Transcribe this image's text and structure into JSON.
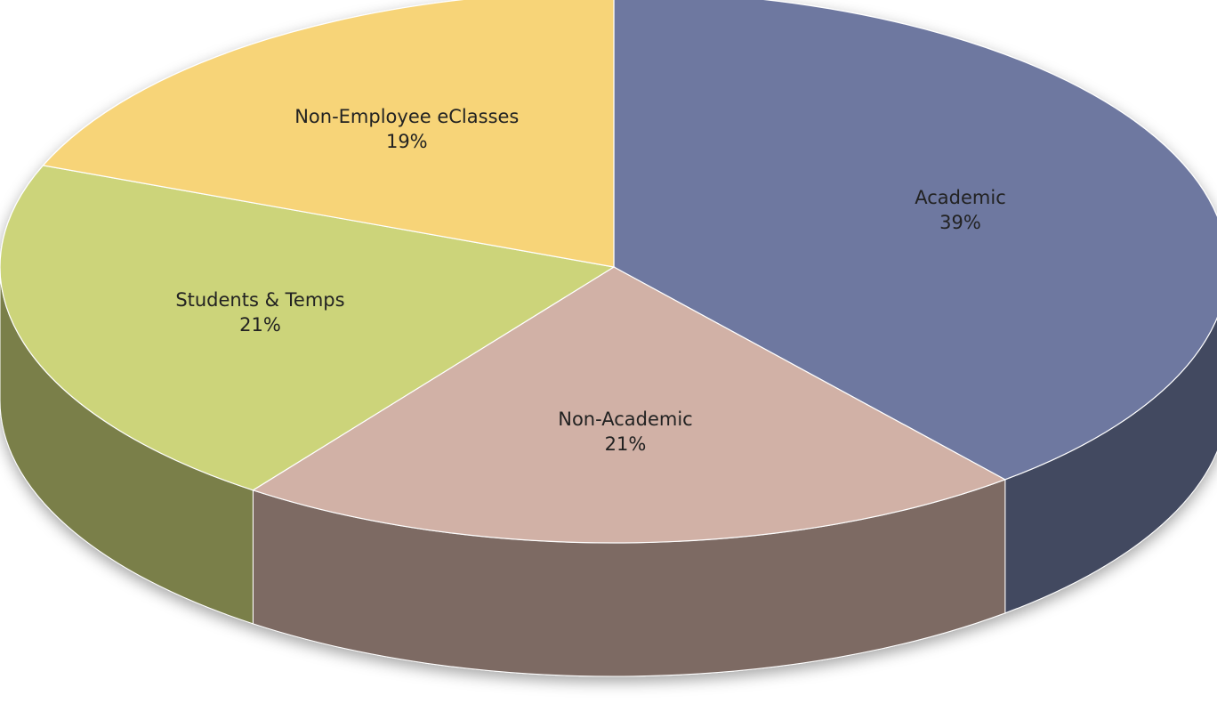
{
  "chart_data": {
    "type": "pie",
    "categories": [
      "Academic",
      "Non-Academic",
      "Students & Temps",
      "Non-Employee eClasses"
    ],
    "values": [
      39,
      21,
      21,
      19
    ],
    "value_labels": [
      "39%",
      "21%",
      "21%",
      "19%"
    ],
    "colors": [
      "#6e78a0",
      "#d1b1a6",
      "#ccd47a",
      "#f7d478"
    ]
  }
}
